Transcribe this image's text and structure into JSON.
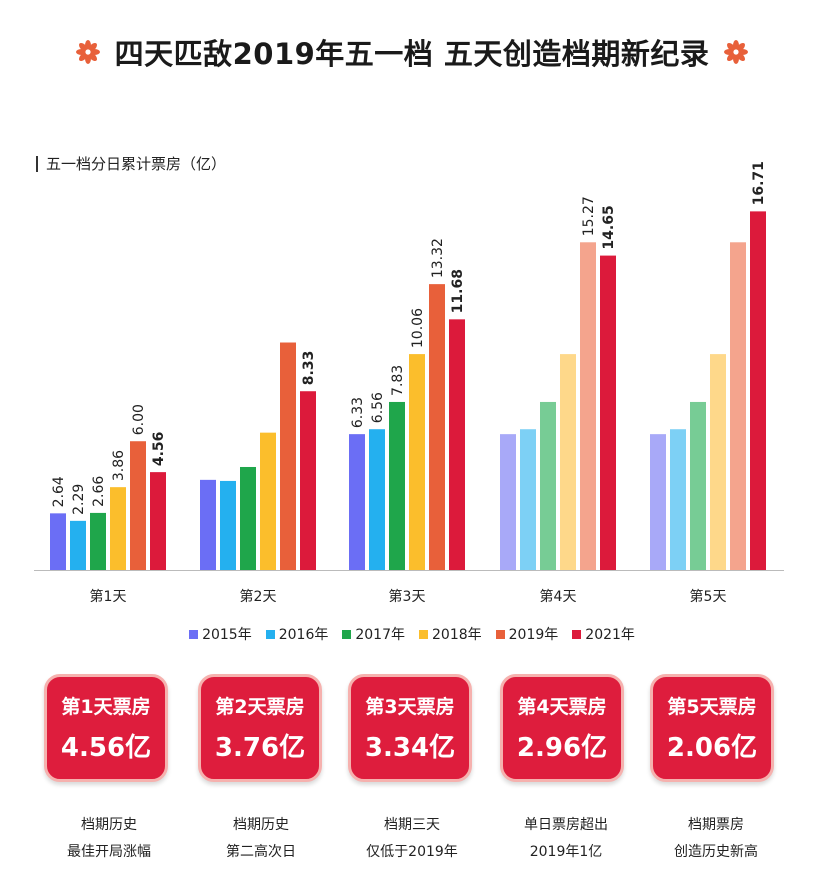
{
  "title": "四天匹敌2019年五一档 五天创造档期新纪录",
  "subtitle": "五一档分日累计票房（亿）",
  "colors": {
    "2015": "#6b6ef5",
    "2016": "#24b0ef",
    "2017": "#1fa64b",
    "2018": "#fbbe2c",
    "2019": "#e8603a",
    "2021": "#dc1a3b",
    "2015_light": "#a8a9f8",
    "2016_light": "#7dd0f5",
    "2017_light": "#77cc95",
    "2018_light": "#fed88a",
    "2019_light": "#f4a48d",
    "flower": "#e8603a",
    "card_bg": "#de1d3d"
  },
  "chart_data": {
    "type": "bar",
    "title": "",
    "xlabel": "",
    "ylabel": "五一档分日累计票房（亿）",
    "ylim": [
      0,
      17.5
    ],
    "categories": [
      "第1天",
      "第2天",
      "第3天",
      "第4天",
      "第5天"
    ],
    "legend_position": "bottom",
    "series": [
      {
        "name": "2015年",
        "values": [
          2.64,
          4.2,
          6.33,
          6.33,
          6.33
        ],
        "labels": [
          "2.64",
          "",
          "6.33",
          "",
          ""
        ]
      },
      {
        "name": "2016年",
        "values": [
          2.29,
          4.15,
          6.56,
          6.56,
          6.56
        ],
        "labels": [
          "2.29",
          "",
          "6.56",
          "",
          ""
        ]
      },
      {
        "name": "2017年",
        "values": [
          2.66,
          4.8,
          7.83,
          7.83,
          7.83
        ],
        "labels": [
          "2.66",
          "",
          "7.83",
          "",
          ""
        ]
      },
      {
        "name": "2018年",
        "values": [
          3.86,
          6.4,
          10.06,
          10.06,
          10.06
        ],
        "labels": [
          "3.86",
          "",
          "10.06",
          "",
          ""
        ]
      },
      {
        "name": "2019年",
        "values": [
          6.0,
          10.6,
          13.32,
          15.27,
          15.27
        ],
        "labels": [
          "6.00",
          "",
          "13.32",
          "15.27",
          ""
        ]
      },
      {
        "name": "2021年",
        "values": [
          4.56,
          8.33,
          11.68,
          14.65,
          16.71
        ],
        "labels": [
          "4.56",
          "8.33",
          "11.68",
          "14.65",
          "16.71"
        ]
      }
    ],
    "faded_categories": [
      "第4天",
      "第5天"
    ]
  },
  "cards": [
    {
      "label": "第1天票房",
      "value": "4.56亿",
      "note1": "档期历史",
      "note2": "最佳开局涨幅"
    },
    {
      "label": "第2天票房",
      "value": "3.76亿",
      "note1": "档期历史",
      "note2": "第二高次日"
    },
    {
      "label": "第3天票房",
      "value": "3.34亿",
      "note1": "档期三天",
      "note2": "仅低于2019年"
    },
    {
      "label": "第4天票房",
      "value": "2.96亿",
      "note1": "单日票房超出",
      "note2": "2019年1亿"
    },
    {
      "label": "第5天票房",
      "value": "2.06亿",
      "note1": "档期票房",
      "note2": "创造历史新高"
    }
  ]
}
